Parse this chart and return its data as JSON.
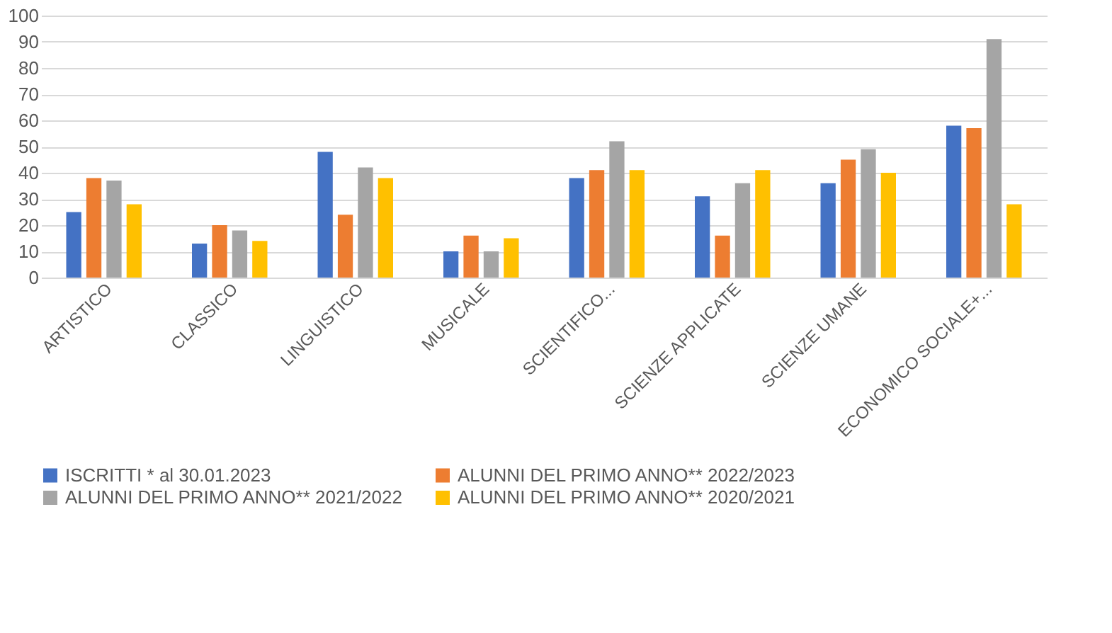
{
  "chart_data": {
    "type": "bar",
    "categories": [
      "ARTISTICO",
      "CLASSICO",
      "LINGUISTICO",
      "MUSICALE",
      "SCIENTIFICO...",
      "SCIENZE APPLICATE",
      "SCIENZE UMANE",
      "ECONOMICO SOCIALE+..."
    ],
    "series": [
      {
        "name": "ISCRITTI * al 30.01.2023",
        "color": "#4472c4",
        "values": [
          25,
          13,
          48,
          10,
          38,
          31,
          36,
          58
        ]
      },
      {
        "name": "ALUNNI DEL PRIMO ANNO** 2022/2023",
        "color": "#ed7d31",
        "values": [
          38,
          20,
          24,
          16,
          41,
          16,
          45,
          57
        ]
      },
      {
        "name": "ALUNNI DEL PRIMO ANNO** 2021/2022",
        "color": "#a5a5a5",
        "values": [
          37,
          18,
          42,
          10,
          52,
          36,
          49,
          91
        ]
      },
      {
        "name": "ALUNNI DEL PRIMO ANNO** 2020/2021",
        "color": "#ffc000",
        "values": [
          28,
          14,
          38,
          15,
          41,
          41,
          40,
          28
        ]
      }
    ],
    "ylim": [
      0,
      100
    ],
    "yticks": [
      0,
      10,
      20,
      30,
      40,
      50,
      60,
      70,
      80,
      90,
      100
    ],
    "grid": "y",
    "legend": "bottom"
  }
}
